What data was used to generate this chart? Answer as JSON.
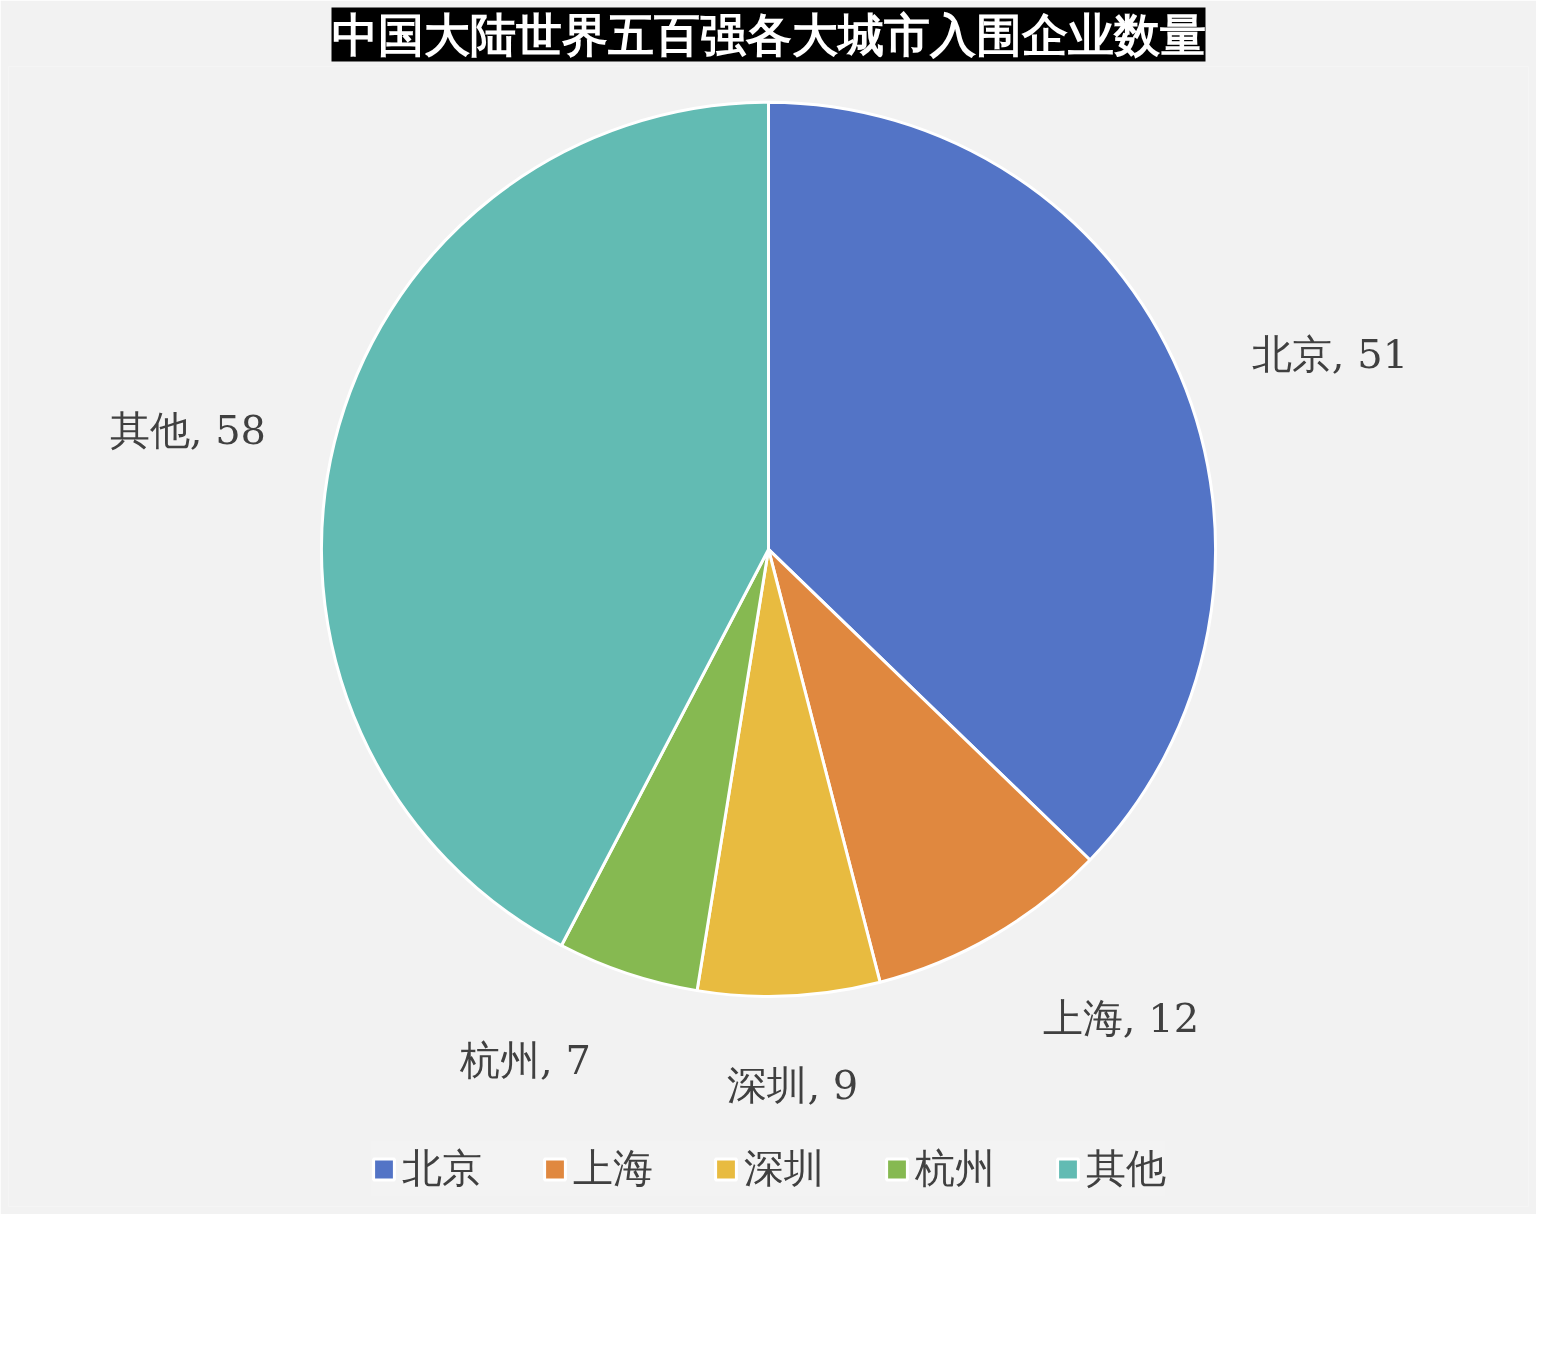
{
  "chart_data": {
    "type": "pie",
    "title": "中国大陆世界五百强各大城市入围企业数量",
    "categories": [
      "北京",
      "上海",
      "深圳",
      "杭州",
      "其他"
    ],
    "values": [
      51,
      12,
      9,
      7,
      58
    ],
    "value_labels": [
      "北京, 51",
      "上海, 12",
      "深圳, 9",
      "杭州, 7",
      "其他, 58"
    ],
    "colors": [
      "#5374c6",
      "#e0883f",
      "#e8bb40",
      "#86b951",
      "#62bbb3"
    ],
    "legend": "bottom"
  }
}
